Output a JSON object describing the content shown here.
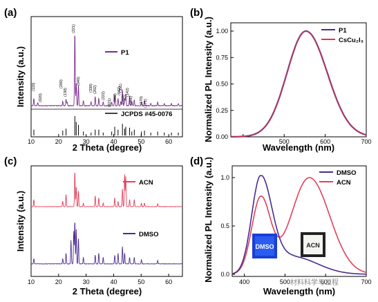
{
  "panels": {
    "a": {
      "letter": "(a)",
      "xlabel": "2 Theta (degree)",
      "ylabel": "Intensity (a.u.)",
      "legend_p1": "P1",
      "legend_ref": "JCPDS #45-0076",
      "xticks": [
        "10",
        "20",
        "30",
        "40",
        "50",
        "60"
      ],
      "planes": [
        "(110)",
        "(020)",
        "(200)",
        "(130)",
        "(221)",
        "(040)",
        "(330)",
        "(202)",
        "(222)",
        "(421)",
        "(060)",
        "(042)",
        "(260)",
        "(351)",
        "(142)",
        "(261)",
        "(170)",
        "(171)"
      ]
    },
    "b": {
      "letter": "(b)",
      "xlabel": "Wavelength (nm)",
      "ylabel": "Normalized PL Intensity (a.u.)",
      "legend": [
        "P1",
        "CsCu₂I₃"
      ],
      "xticks": [
        "500",
        "600",
        "700"
      ],
      "yticks": [
        "0.00",
        "0.25",
        "0.50",
        "0.75",
        "1.00"
      ]
    },
    "c": {
      "letter": "(c)",
      "xlabel": "2 Theta (degree)",
      "ylabel": "Intensity (a.u.)",
      "legend": [
        "ACN",
        "DMSO"
      ],
      "xticks": [
        "10",
        "20",
        "30",
        "40",
        "50",
        "60"
      ]
    },
    "d": {
      "letter": "(d)",
      "xlabel": "Wavelength (nm)",
      "ylabel": "Normalized PL Intensity (a.u.)",
      "legend": [
        "DMSO",
        "ACN"
      ],
      "xticks": [
        "400",
        "500",
        "600",
        "700"
      ],
      "yticks": [
        "0.0",
        "0.5",
        "1.0"
      ],
      "photos": [
        "DMSO",
        "ACN"
      ]
    }
  },
  "watermark": "材料科学与工程",
  "colors": {
    "p1": "#7a2b8c",
    "csc": "#d9384a",
    "acn": "#e0405a",
    "dmso": "#4a2a8f",
    "ref": "#000000",
    "photo_dmso": "#1a3fd6",
    "photo_acn_border": "#222222"
  },
  "chart_data": [
    {
      "type": "line",
      "panel": "a",
      "xlabel": "2 Theta (degree)",
      "ylabel": "Intensity (a.u.)",
      "xlim": [
        10,
        65
      ],
      "series": [
        {
          "name": "P1",
          "peaks_x": [
            11.0,
            12.4,
            21.5,
            22.7,
            23.1,
            25.9,
            26.4,
            27.2,
            29.0,
            31.8,
            33.3,
            34.6,
            36.2,
            39.3,
            40.4,
            41.6,
            42.6,
            43.2,
            44.0,
            44.4,
            45.8,
            46.6,
            47.5,
            50.1,
            51.2,
            53.5,
            56.0,
            58.4,
            61.0,
            63.5
          ],
          "peaks_h": [
            0.1,
            0.04,
            0.06,
            0.09,
            0.05,
            1.0,
            0.3,
            0.28,
            0.07,
            0.05,
            0.12,
            0.1,
            0.05,
            0.05,
            0.15,
            0.1,
            0.06,
            0.22,
            0.1,
            0.16,
            0.14,
            0.06,
            0.08,
            0.05,
            0.07,
            0.03,
            0.05,
            0.03,
            0.03,
            0.03
          ]
        },
        {
          "name": "JCPDS #45-0076",
          "peaks_x": [
            11.0,
            21.5,
            22.7,
            25.9,
            26.4,
            27.2,
            29.0,
            31.8,
            33.3,
            34.6,
            36.2,
            39.3,
            40.4,
            41.6,
            43.2,
            44.0,
            44.4,
            45.8,
            46.6,
            47.5,
            50.1,
            51.2,
            53.5,
            56.0,
            58.4,
            61.0,
            63.5
          ],
          "peaks_h": [
            0.3,
            0.25,
            0.35,
            1.0,
            0.7,
            0.55,
            0.2,
            0.15,
            0.3,
            0.3,
            0.15,
            0.2,
            0.45,
            0.3,
            0.6,
            0.35,
            0.45,
            0.4,
            0.2,
            0.3,
            0.2,
            0.25,
            0.15,
            0.2,
            0.15,
            0.15,
            0.15
          ]
        }
      ]
    },
    {
      "type": "line",
      "panel": "b",
      "xlabel": "Wavelength (nm)",
      "ylabel": "Normalized PL Intensity (a.u.)",
      "xlim": [
        370,
        700
      ],
      "ylim": [
        0,
        1.0
      ],
      "series": [
        {
          "name": "P1",
          "peak": 553,
          "sigma_left": 46,
          "sigma_right": 52
        },
        {
          "name": "CsCu₂I₃",
          "peak": 553,
          "sigma_left": 46,
          "sigma_right": 52
        }
      ]
    },
    {
      "type": "line",
      "panel": "c",
      "xlabel": "2 Theta (degree)",
      "ylabel": "Intensity (a.u.)",
      "xlim": [
        10,
        65
      ],
      "series": [
        {
          "name": "ACN",
          "peaks_x": [
            11.0,
            21.5,
            22.7,
            25.9,
            26.4,
            27.2,
            29.0,
            33.3,
            34.6,
            36.2,
            40.4,
            41.6,
            43.2,
            44.0,
            44.4,
            45.8,
            47.5,
            50.1,
            51.2,
            56.0
          ],
          "peaks_h": [
            0.2,
            0.15,
            0.35,
            1.0,
            0.55,
            0.45,
            0.1,
            0.3,
            0.25,
            0.1,
            0.25,
            0.15,
            0.5,
            0.9,
            0.85,
            0.2,
            0.2,
            0.1,
            0.1,
            0.08
          ]
        },
        {
          "name": "DMSO",
          "peaks_x": [
            11.0,
            21.5,
            22.7,
            24.5,
            25.5,
            25.9,
            26.4,
            27.2,
            29.0,
            33.3,
            34.6,
            36.2,
            40.4,
            41.6,
            43.2,
            44.0,
            45.8,
            47.5,
            50.1,
            56.0
          ],
          "peaks_h": [
            0.12,
            0.12,
            0.25,
            0.55,
            0.75,
            1.0,
            0.8,
            0.6,
            0.15,
            0.2,
            0.25,
            0.15,
            0.2,
            0.25,
            0.4,
            0.25,
            0.15,
            0.15,
            0.1,
            0.08
          ]
        }
      ]
    },
    {
      "type": "line",
      "panel": "d",
      "xlabel": "Wavelength (nm)",
      "ylabel": "Normalized PL Intensity (a.u.)",
      "xlim": [
        370,
        700
      ],
      "ylim": [
        0,
        1.0
      ],
      "series": [
        {
          "name": "DMSO",
          "components": [
            {
              "center": 440,
              "amp": 1.0,
              "sigma_left": 22,
              "sigma_right": 28
            },
            {
              "center": 520,
              "amp": 0.18,
              "sigma_left": 40,
              "sigma_right": 60
            }
          ]
        },
        {
          "name": "ACN",
          "components": [
            {
              "center": 440,
              "amp": 0.78,
              "sigma_left": 22,
              "sigma_right": 24
            },
            {
              "center": 560,
              "amp": 1.0,
              "sigma_left": 45,
              "sigma_right": 50
            }
          ]
        }
      ]
    }
  ]
}
